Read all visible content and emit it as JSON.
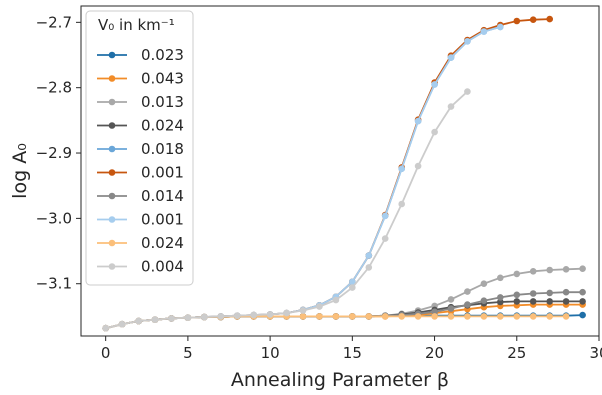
{
  "chart_data": {
    "type": "line",
    "xlabel": "Annealing Parameter β",
    "ylabel": "log A₀",
    "xlim": [
      -1.5,
      30
    ],
    "ylim": [
      -3.18,
      -2.675
    ],
    "xticks": [
      "0",
      "5",
      "10",
      "15",
      "20",
      "25",
      "30"
    ],
    "xtick_values": [
      0,
      5,
      10,
      15,
      20,
      25,
      30
    ],
    "yticks": [
      "−3.1",
      "−3.0",
      "−2.9",
      "−2.8",
      "−2.7"
    ],
    "ytick_values": [
      -3.1,
      -3.0,
      -2.9,
      -2.8,
      -2.7
    ],
    "grid": false,
    "legend": {
      "title": "V₀ in km⁻¹",
      "position": "top-left"
    },
    "series": [
      {
        "name": "0.023",
        "color": "#1f6fa8",
        "x": [
          0,
          1,
          2,
          3,
          4,
          5,
          6,
          7,
          8,
          9,
          10,
          11,
          12,
          13,
          14,
          15,
          16,
          17,
          18,
          19,
          20,
          21,
          22,
          23,
          24,
          25,
          26,
          27,
          28,
          29
        ],
        "y": [
          -3.168,
          -3.162,
          -3.157,
          -3.155,
          -3.153,
          -3.152,
          -3.151,
          -3.151,
          -3.15,
          -3.15,
          -3.15,
          -3.15,
          -3.15,
          -3.15,
          -3.15,
          -3.15,
          -3.15,
          -3.149,
          -3.149,
          -3.149,
          -3.149,
          -3.149,
          -3.149,
          -3.149,
          -3.149,
          -3.149,
          -3.149,
          -3.149,
          -3.149,
          -3.148
        ]
      },
      {
        "name": "0.043",
        "color": "#f28c28",
        "x": [
          0,
          1,
          2,
          3,
          4,
          5,
          6,
          7,
          8,
          9,
          10,
          11,
          12,
          13,
          14,
          15,
          16,
          17,
          18,
          19,
          20,
          21,
          22,
          23,
          24,
          25,
          26,
          27,
          28,
          29
        ],
        "y": [
          -3.168,
          -3.162,
          -3.157,
          -3.155,
          -3.153,
          -3.152,
          -3.151,
          -3.151,
          -3.15,
          -3.15,
          -3.15,
          -3.15,
          -3.15,
          -3.15,
          -3.15,
          -3.15,
          -3.15,
          -3.15,
          -3.149,
          -3.148,
          -3.145,
          -3.142,
          -3.139,
          -3.136,
          -3.134,
          -3.133,
          -3.132,
          -3.132,
          -3.132,
          -3.132
        ]
      },
      {
        "name": "0.013",
        "color": "#a8a8a8",
        "x": [
          0,
          1,
          2,
          3,
          4,
          5,
          6,
          7,
          8,
          9,
          10,
          11,
          12,
          13,
          14,
          15,
          16,
          17,
          18,
          19,
          20,
          21,
          22,
          23,
          24,
          25,
          26,
          27,
          28,
          29
        ],
        "y": [
          -3.168,
          -3.162,
          -3.157,
          -3.155,
          -3.153,
          -3.152,
          -3.151,
          -3.151,
          -3.15,
          -3.15,
          -3.15,
          -3.15,
          -3.15,
          -3.15,
          -3.15,
          -3.15,
          -3.15,
          -3.149,
          -3.146,
          -3.141,
          -3.134,
          -3.124,
          -3.112,
          -3.1,
          -3.091,
          -3.085,
          -3.081,
          -3.079,
          -3.078,
          -3.077
        ]
      },
      {
        "name": "0.024",
        "color": "#555555",
        "x": [
          0,
          1,
          2,
          3,
          4,
          5,
          6,
          7,
          8,
          9,
          10,
          11,
          12,
          13,
          14,
          15,
          16,
          17,
          18,
          19,
          20,
          21,
          22,
          23,
          24,
          25,
          26,
          27,
          28,
          29
        ],
        "y": [
          -3.168,
          -3.162,
          -3.157,
          -3.155,
          -3.153,
          -3.152,
          -3.151,
          -3.151,
          -3.15,
          -3.15,
          -3.15,
          -3.15,
          -3.15,
          -3.15,
          -3.15,
          -3.15,
          -3.15,
          -3.149,
          -3.147,
          -3.144,
          -3.14,
          -3.136,
          -3.133,
          -3.13,
          -3.128,
          -3.127,
          -3.127,
          -3.127,
          -3.127,
          -3.127
        ]
      },
      {
        "name": "0.018",
        "color": "#6aa6d8",
        "x": [
          0,
          1,
          2,
          3,
          4,
          5,
          6,
          7,
          8,
          9,
          10,
          11,
          12,
          13,
          14,
          15,
          16,
          17,
          18,
          19,
          20,
          21,
          22,
          23,
          24
        ],
        "y": [
          -3.168,
          -3.162,
          -3.157,
          -3.155,
          -3.153,
          -3.152,
          -3.151,
          -3.15,
          -3.149,
          -3.148,
          -3.147,
          -3.145,
          -3.14,
          -3.133,
          -3.12,
          -3.097,
          -3.057,
          -2.996,
          -2.924,
          -2.851,
          -2.795,
          -2.754,
          -2.729,
          -2.714,
          -2.707
        ]
      },
      {
        "name": "0.001",
        "color": "#c7560f",
        "x": [
          0,
          1,
          2,
          3,
          4,
          5,
          6,
          7,
          8,
          9,
          10,
          11,
          12,
          13,
          14,
          15,
          16,
          17,
          18,
          19,
          20,
          21,
          22,
          23,
          24,
          25,
          26,
          27
        ],
        "y": [
          -3.168,
          -3.162,
          -3.157,
          -3.155,
          -3.153,
          -3.152,
          -3.151,
          -3.15,
          -3.149,
          -3.148,
          -3.147,
          -3.145,
          -3.14,
          -3.133,
          -3.12,
          -3.097,
          -3.057,
          -2.995,
          -2.922,
          -2.849,
          -2.792,
          -2.751,
          -2.727,
          -2.712,
          -2.704,
          -2.698,
          -2.696,
          -2.695
        ]
      },
      {
        "name": "0.014",
        "color": "#888888",
        "x": [
          0,
          1,
          2,
          3,
          4,
          5,
          6,
          7,
          8,
          9,
          10,
          11,
          12,
          13,
          14,
          15,
          16,
          17,
          18,
          19,
          20,
          21,
          22,
          23,
          24,
          25,
          26,
          27,
          28,
          29
        ],
        "y": [
          -3.168,
          -3.162,
          -3.157,
          -3.155,
          -3.153,
          -3.152,
          -3.151,
          -3.151,
          -3.15,
          -3.15,
          -3.15,
          -3.15,
          -3.15,
          -3.15,
          -3.15,
          -3.15,
          -3.15,
          -3.149,
          -3.148,
          -3.146,
          -3.143,
          -3.138,
          -3.132,
          -3.126,
          -3.121,
          -3.117,
          -3.115,
          -3.114,
          -3.113,
          -3.113
        ]
      },
      {
        "name": "0.001",
        "color": "#a6cdee",
        "x": [
          0,
          1,
          2,
          3,
          4,
          5,
          6,
          7,
          8,
          9,
          10,
          11,
          12,
          13,
          14,
          15,
          16,
          17,
          18,
          19,
          20,
          21,
          22,
          23,
          24
        ],
        "y": [
          -3.168,
          -3.162,
          -3.157,
          -3.155,
          -3.153,
          -3.152,
          -3.151,
          -3.15,
          -3.149,
          -3.148,
          -3.147,
          -3.145,
          -3.14,
          -3.133,
          -3.12,
          -3.097,
          -3.057,
          -2.996,
          -2.924,
          -2.851,
          -2.795,
          -2.754,
          -2.729,
          -2.714,
          -2.707
        ]
      },
      {
        "name": "0.024",
        "color": "#fbbf7a",
        "x": [
          0,
          1,
          2,
          3,
          4,
          5,
          6,
          7,
          8,
          9,
          10,
          11,
          12,
          13,
          14,
          15,
          16,
          17,
          18,
          19,
          20,
          21,
          22,
          23,
          24,
          25,
          26,
          27,
          28
        ],
        "y": [
          -3.168,
          -3.162,
          -3.157,
          -3.155,
          -3.153,
          -3.152,
          -3.151,
          -3.151,
          -3.15,
          -3.15,
          -3.15,
          -3.15,
          -3.15,
          -3.15,
          -3.15,
          -3.15,
          -3.15,
          -3.15,
          -3.15,
          -3.15,
          -3.15,
          -3.15,
          -3.15,
          -3.15,
          -3.15,
          -3.15,
          -3.15,
          -3.15,
          -3.15
        ]
      },
      {
        "name": "0.004",
        "color": "#cccccc",
        "x": [
          0,
          1,
          2,
          3,
          4,
          5,
          6,
          7,
          8,
          9,
          10,
          11,
          12,
          13,
          14,
          15,
          16,
          17,
          18,
          19,
          20,
          21,
          22
        ],
        "y": [
          -3.168,
          -3.162,
          -3.157,
          -3.155,
          -3.153,
          -3.152,
          -3.151,
          -3.15,
          -3.149,
          -3.148,
          -3.147,
          -3.145,
          -3.141,
          -3.135,
          -3.125,
          -3.106,
          -3.075,
          -3.031,
          -2.978,
          -2.92,
          -2.868,
          -2.829,
          -2.806
        ]
      }
    ]
  }
}
